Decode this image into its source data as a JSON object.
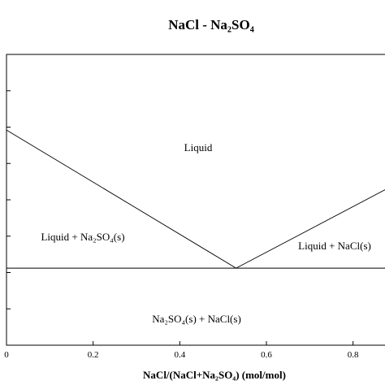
{
  "chart_data": {
    "type": "line",
    "title": "NaCl - Na₂SO₄",
    "xlabel": "NaCl/(NaCl+Na₂SO₄) (mol/mol)",
    "ylabel": "",
    "xlim": [
      0,
      0.9
    ],
    "ylim": [
      0,
      1
    ],
    "x_ticks": [
      "0",
      "0.2",
      "0.4",
      "0.6",
      "0.8"
    ],
    "x_tick_values": [
      0,
      0.2,
      0.4,
      0.6,
      0.8
    ],
    "y_tick_values": [
      0.125,
      0.25,
      0.375,
      0.5,
      0.625,
      0.75,
      0.875
    ],
    "grid": false,
    "series": [
      {
        "x": [
          0,
          0.53
        ],
        "y": [
          0.74,
          0.265
        ]
      },
      {
        "x": [
          0.53,
          0.9
        ],
        "y": [
          0.265,
          0.555
        ]
      },
      {
        "x": [
          0,
          0.9
        ],
        "y": [
          0.265,
          0.265
        ]
      }
    ],
    "annotations": {
      "liquid": "Liquid",
      "liquid_na2so4": "Liquid + Na₂SO₄(s)",
      "liquid_nacl": "Liquid + NaCl(s)",
      "solids": "Na₂SO₄(s) + NaCl(s)"
    }
  }
}
